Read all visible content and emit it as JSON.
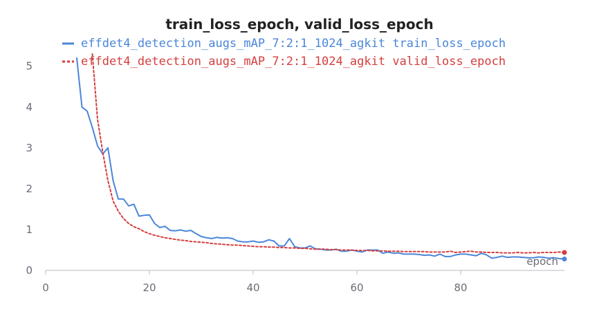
{
  "chart_data": {
    "type": "line",
    "title": "train_loss_epoch, valid_loss_epoch",
    "xlabel": "epoch",
    "ylabel": "",
    "xlim": [
      0,
      100
    ],
    "ylim": [
      0,
      5.3
    ],
    "x_ticks": [
      0,
      20,
      40,
      60,
      80
    ],
    "y_ticks": [
      0,
      1,
      2,
      3,
      4,
      5
    ],
    "grid": false,
    "legend_position": "top",
    "series": [
      {
        "name": "effdet4_detection_augs_mAP_7:2:1_1024_agkit train_loss_epoch",
        "color": "#4a86d8",
        "style": "solid",
        "x": [
          6,
          7,
          8,
          9,
          10,
          11,
          12,
          13,
          14,
          15,
          16,
          17,
          18,
          19,
          20,
          21,
          22,
          23,
          24,
          25,
          26,
          27,
          28,
          29,
          30,
          31,
          32,
          33,
          34,
          35,
          36,
          37,
          38,
          39,
          40,
          41,
          42,
          43,
          44,
          45,
          46,
          47,
          48,
          49,
          50,
          51,
          52,
          53,
          54,
          55,
          56,
          57,
          58,
          59,
          60,
          61,
          62,
          63,
          64,
          65,
          66,
          67,
          68,
          69,
          70,
          71,
          72,
          73,
          74,
          75,
          76,
          77,
          78,
          79,
          80,
          81,
          82,
          83,
          84,
          85,
          86,
          87,
          88,
          89,
          90,
          91,
          92,
          93,
          94,
          95,
          96,
          97,
          98,
          99,
          100
        ],
        "values": [
          5.2,
          4.0,
          3.9,
          3.5,
          3.05,
          2.85,
          3.0,
          2.2,
          1.75,
          1.75,
          1.58,
          1.62,
          1.33,
          1.35,
          1.36,
          1.15,
          1.05,
          1.08,
          0.98,
          0.97,
          0.99,
          0.96,
          0.98,
          0.9,
          0.83,
          0.8,
          0.78,
          0.81,
          0.79,
          0.8,
          0.78,
          0.72,
          0.7,
          0.7,
          0.72,
          0.69,
          0.7,
          0.75,
          0.72,
          0.6,
          0.6,
          0.78,
          0.58,
          0.55,
          0.55,
          0.6,
          0.53,
          0.52,
          0.5,
          0.5,
          0.52,
          0.47,
          0.47,
          0.5,
          0.47,
          0.45,
          0.5,
          0.5,
          0.5,
          0.42,
          0.45,
          0.42,
          0.43,
          0.4,
          0.4,
          0.4,
          0.39,
          0.37,
          0.38,
          0.35,
          0.4,
          0.34,
          0.34,
          0.38,
          0.4,
          0.4,
          0.38,
          0.36,
          0.42,
          0.38,
          0.3,
          0.32,
          0.35,
          0.32,
          0.33,
          0.33,
          0.32,
          0.31,
          0.31,
          0.33,
          0.32,
          0.3,
          0.31,
          0.29,
          0.28
        ]
      },
      {
        "name": "effdet4_detection_augs_mAP_7:2:1_1024_agkit valid_loss_epoch",
        "color": "#d63d3d",
        "style": "dashed",
        "x": [
          9,
          10,
          11,
          12,
          13,
          14,
          15,
          16,
          17,
          18,
          19,
          20,
          21,
          22,
          23,
          24,
          25,
          26,
          27,
          28,
          29,
          30,
          31,
          32,
          33,
          34,
          35,
          36,
          37,
          38,
          39,
          40,
          41,
          42,
          43,
          44,
          45,
          46,
          47,
          48,
          49,
          50,
          51,
          52,
          53,
          54,
          55,
          56,
          57,
          58,
          59,
          60,
          61,
          62,
          63,
          64,
          65,
          66,
          67,
          68,
          69,
          70,
          71,
          72,
          73,
          74,
          75,
          76,
          77,
          78,
          79,
          80,
          81,
          82,
          83,
          84,
          85,
          86,
          87,
          88,
          89,
          90,
          91,
          92,
          93,
          94,
          95,
          96,
          97,
          98,
          99,
          100
        ],
        "values": [
          5.3,
          3.7,
          2.9,
          2.2,
          1.7,
          1.45,
          1.27,
          1.15,
          1.07,
          1.02,
          0.95,
          0.9,
          0.86,
          0.83,
          0.8,
          0.78,
          0.76,
          0.74,
          0.73,
          0.71,
          0.7,
          0.69,
          0.68,
          0.66,
          0.65,
          0.64,
          0.63,
          0.62,
          0.62,
          0.61,
          0.6,
          0.59,
          0.58,
          0.58,
          0.57,
          0.57,
          0.56,
          0.56,
          0.55,
          0.55,
          0.54,
          0.54,
          0.53,
          0.52,
          0.52,
          0.52,
          0.51,
          0.51,
          0.5,
          0.5,
          0.5,
          0.49,
          0.49,
          0.49,
          0.48,
          0.48,
          0.48,
          0.47,
          0.47,
          0.47,
          0.46,
          0.46,
          0.46,
          0.46,
          0.46,
          0.45,
          0.45,
          0.45,
          0.45,
          0.47,
          0.44,
          0.45,
          0.46,
          0.47,
          0.45,
          0.45,
          0.44,
          0.44,
          0.44,
          0.43,
          0.43,
          0.43,
          0.44,
          0.43,
          0.43,
          0.44,
          0.43,
          0.44,
          0.44,
          0.44,
          0.45,
          0.44
        ]
      }
    ],
    "axis_color": "#b8b8c4",
    "tick_text_color": "#6b6b76"
  }
}
